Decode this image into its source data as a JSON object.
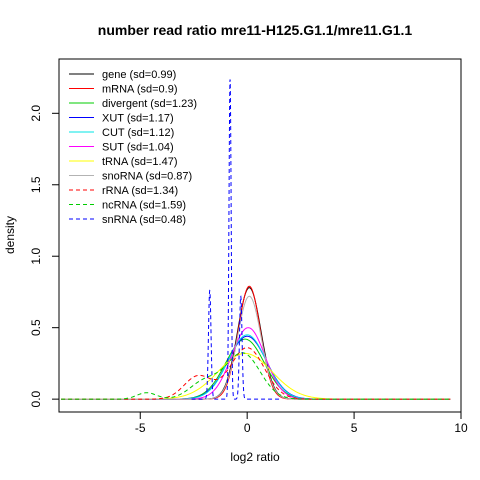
{
  "chart_data": {
    "type": "line",
    "title": "number read ratio mre11-H125.G1.1/mre11.G1.1",
    "xlabel": "log2 ratio",
    "ylabel": "density",
    "xlim": [
      -8.8,
      10.0
    ],
    "ylim": [
      -0.09,
      2.38
    ],
    "xticks": [
      -5,
      0,
      5,
      10
    ],
    "yticks": [
      0.0,
      0.5,
      1.0,
      1.5,
      2.0
    ],
    "xtick_labels": [
      "-5",
      "0",
      "5",
      "10"
    ],
    "ytick_labels": [
      "0.0",
      "0.5",
      "1.0",
      "1.5",
      "2.0"
    ],
    "legend_position": "top-left",
    "grid": false,
    "series": [
      {
        "name": "gene (sd=0.99)",
        "color": "#000000",
        "dash": "solid",
        "range": [
          -8.7,
          9.5
        ],
        "peaks": [
          {
            "mu": 0.1,
            "sigma": 0.55,
            "amp": 0.78
          }
        ]
      },
      {
        "name": "mRNA (sd=0.9)",
        "color": "#ff0000",
        "dash": "solid",
        "range": [
          -8.7,
          9.5
        ],
        "peaks": [
          {
            "mu": 0.1,
            "sigma": 0.52,
            "amp": 0.79
          }
        ]
      },
      {
        "name": "divergent (sd=1.23)",
        "color": "#00cc00",
        "dash": "solid",
        "range": [
          -8.7,
          9.5
        ],
        "peaks": [
          {
            "mu": -0.1,
            "sigma": 0.9,
            "amp": 0.42
          }
        ]
      },
      {
        "name": "XUT (sd=1.17)",
        "color": "#0000ff",
        "dash": "solid",
        "range": [
          -8.7,
          9.5
        ],
        "peaks": [
          {
            "mu": 0.0,
            "sigma": 0.9,
            "amp": 0.44
          }
        ]
      },
      {
        "name": "CUT (sd=1.12)",
        "color": "#00e5e5",
        "dash": "solid",
        "range": [
          -8.7,
          9.5
        ],
        "peaks": [
          {
            "mu": 0.0,
            "sigma": 0.88,
            "amp": 0.45
          }
        ]
      },
      {
        "name": "SUT (sd=1.04)",
        "color": "#ff00ff",
        "dash": "solid",
        "range": [
          -8.7,
          9.5
        ],
        "peaks": [
          {
            "mu": 0.05,
            "sigma": 0.78,
            "amp": 0.5
          }
        ]
      },
      {
        "name": "tRNA (sd=1.47)",
        "color": "#ffff00",
        "dash": "solid",
        "range": [
          -8.7,
          9.5
        ],
        "peaks": [
          {
            "mu": -0.1,
            "sigma": 1.25,
            "amp": 0.32
          }
        ]
      },
      {
        "name": "snoRNA (sd=0.87)",
        "color": "#b3b3b3",
        "dash": "solid",
        "range": [
          -8.7,
          9.5
        ],
        "peaks": [
          {
            "mu": 0.1,
            "sigma": 0.55,
            "amp": 0.72
          }
        ]
      },
      {
        "name": "rRNA (sd=1.34)",
        "color": "#ff0000",
        "dash": "dashed",
        "range": [
          -8.7,
          9.5
        ],
        "peaks": [
          {
            "mu": -2.3,
            "sigma": 0.65,
            "amp": 0.16
          },
          {
            "mu": 0.0,
            "sigma": 0.8,
            "amp": 0.36
          }
        ]
      },
      {
        "name": "ncRNA (sd=1.59)",
        "color": "#00cc00",
        "dash": "dashed",
        "range": [
          -8.7,
          9.5
        ],
        "peaks": [
          {
            "mu": -4.7,
            "sigma": 0.45,
            "amp": 0.045
          },
          {
            "mu": -2.0,
            "sigma": 0.7,
            "amp": 0.12
          },
          {
            "mu": -0.2,
            "sigma": 0.8,
            "amp": 0.32
          }
        ]
      },
      {
        "name": "snRNA (sd=0.48)",
        "color": "#0000ff",
        "dash": "dashed",
        "range": [
          -2.6,
          1.5
        ],
        "peaks": [
          {
            "mu": -1.75,
            "sigma": 0.06,
            "amp": 0.76
          },
          {
            "mu": -0.8,
            "sigma": 0.05,
            "amp": 2.24
          },
          {
            "mu": -0.3,
            "sigma": 0.06,
            "amp": 0.72
          }
        ]
      }
    ]
  }
}
